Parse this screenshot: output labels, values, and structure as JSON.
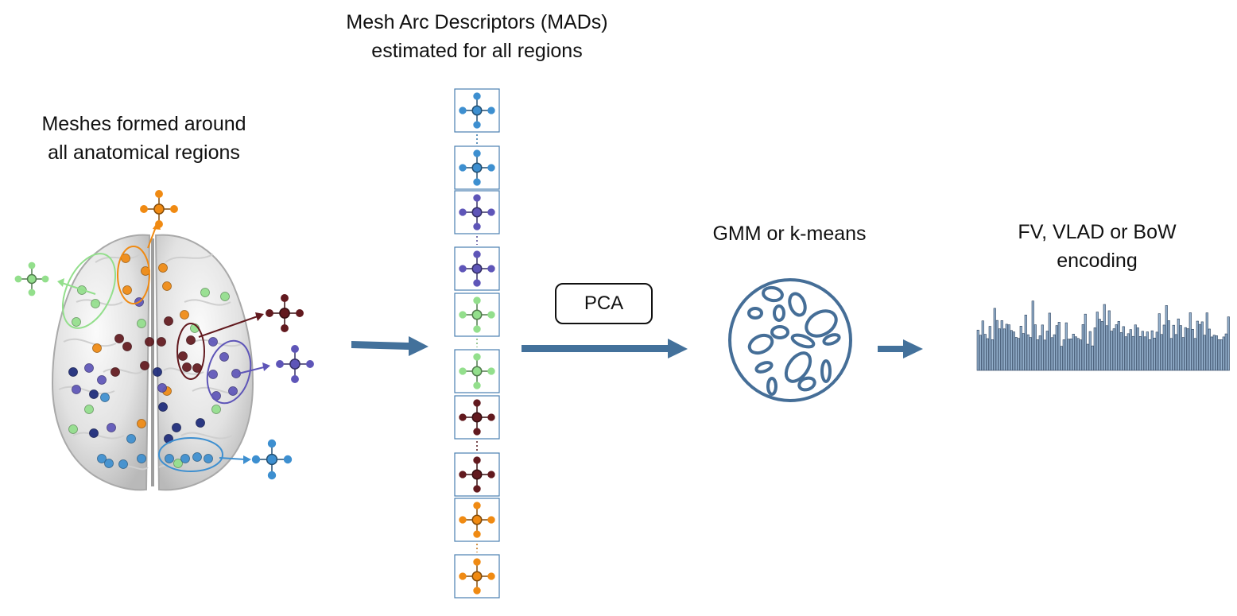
{
  "labels": {
    "meshes": {
      "line1": "Meshes formed around",
      "line2": "all anatomical regions"
    },
    "mads": {
      "line1": "Mesh Arc Descriptors (MADs)",
      "line2": "estimated for all regions"
    },
    "pca": "PCA",
    "gmm": "GMM or k-means",
    "encoding": {
      "line1": "FV, VLAD or BoW",
      "line2": "encoding"
    }
  },
  "colors": {
    "blue": "#3d8fd0",
    "purple": "#5e55b8",
    "green": "#93df8c",
    "maroon": "#62191e",
    "orange": "#f08a12",
    "arrow": "#43719b",
    "cluster": "#456e97",
    "histogram_bar": "#93afcb",
    "box_border": "#4a7fb0"
  },
  "descriptor_stack": [
    {
      "group": "blue",
      "color": "#3d8fd0"
    },
    {
      "group": "purple",
      "color": "#5e55b8"
    },
    {
      "group": "green",
      "color": "#93df8c"
    },
    {
      "group": "maroon",
      "color": "#62191e"
    },
    {
      "group": "orange",
      "color": "#f08a12"
    }
  ],
  "brain_mads": [
    {
      "region": "orange",
      "color": "#f08a12"
    },
    {
      "region": "green",
      "color": "#93df8c"
    },
    {
      "region": "maroon",
      "color": "#62191e"
    },
    {
      "region": "purple",
      "color": "#5e55b8"
    },
    {
      "region": "blue",
      "color": "#3d8fd0"
    }
  ]
}
